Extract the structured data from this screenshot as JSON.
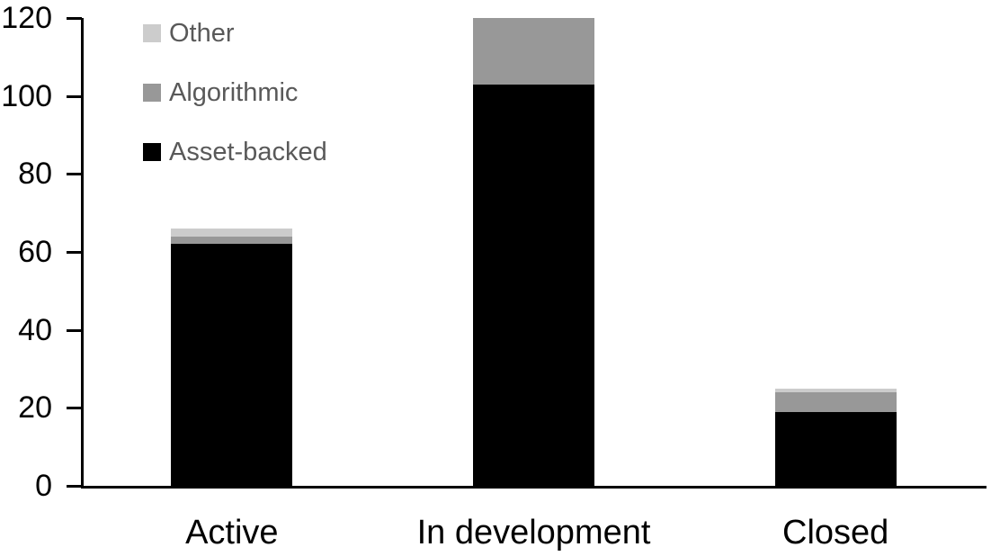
{
  "chart_data": {
    "type": "bar",
    "stacked": true,
    "title": "",
    "xlabel": "",
    "ylabel": "",
    "categories": [
      "Active",
      "In development",
      "Closed"
    ],
    "series": [
      {
        "name": "Asset-backed",
        "color": "#000000",
        "values": [
          62,
          103,
          19
        ]
      },
      {
        "name": "Algorithmic",
        "color": "#989898",
        "values": [
          2,
          17,
          5
        ]
      },
      {
        "name": "Other",
        "color": "#CCCCCC",
        "values": [
          2,
          0,
          1
        ]
      }
    ],
    "ylim": [
      0,
      120
    ],
    "yticks": [
      0,
      20,
      40,
      60,
      80,
      100,
      120
    ],
    "grid": false,
    "legend_position": "top-left-inside",
    "legend_order_top_to_bottom": [
      "Other",
      "Algorithmic",
      "Asset-backed"
    ]
  },
  "style": {
    "background": "#FFFFFF",
    "axis_color": "#000000",
    "tick_label_color": "#000000",
    "category_label_color": "#000000",
    "legend_text_color": "#595959"
  }
}
